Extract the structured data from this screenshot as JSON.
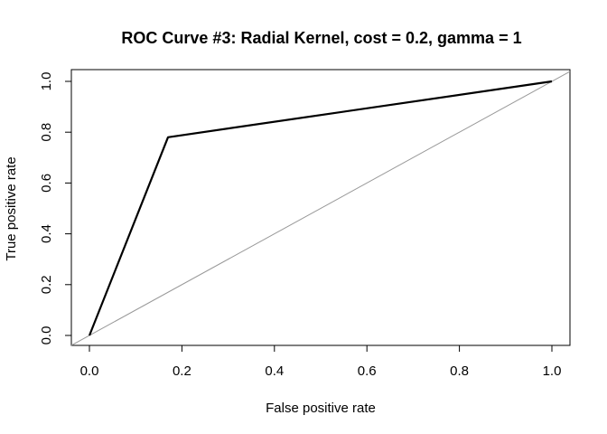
{
  "chart_data": {
    "type": "line",
    "title": "ROC Curve #3: Radial Kernel, cost = 0.2, gamma = 1",
    "xlabel": "False positive rate",
    "ylabel": "True positive rate",
    "xlim": [
      0,
      1
    ],
    "ylim": [
      0,
      1
    ],
    "x_ticks": [
      "0.0",
      "0.2",
      "0.4",
      "0.6",
      "0.8",
      "1.0"
    ],
    "y_ticks": [
      "0.0",
      "0.2",
      "0.4",
      "0.6",
      "0.8",
      "1.0"
    ],
    "grid": false,
    "legend": "none",
    "series": [
      {
        "role": "roc",
        "color": "#000000",
        "x": [
          0,
          0.17,
          1
        ],
        "y": [
          0,
          0.78,
          1
        ]
      },
      {
        "role": "diagonal-reference",
        "color": "#999999",
        "x": [
          0,
          1
        ],
        "y": [
          0,
          1
        ]
      }
    ]
  }
}
